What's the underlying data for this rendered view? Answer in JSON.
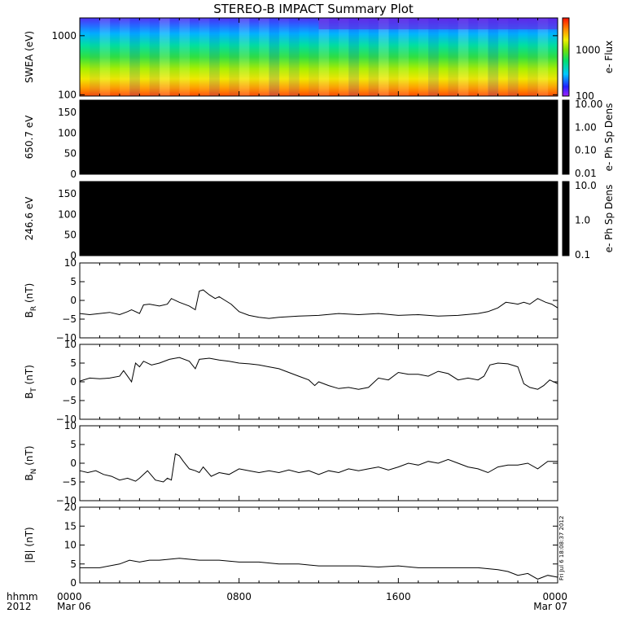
{
  "chart_data": {
    "title": "STEREO-B IMPACT Summary Plot",
    "type": "multi-panel",
    "x_axis": {
      "range": [
        "2012-03-06T00:00",
        "2012-03-07T00:00"
      ],
      "ticks": [
        {
          "t": 0,
          "hhmm": "0000",
          "date": "Mar 06"
        },
        {
          "t": 8,
          "hhmm": "0800",
          "date": ""
        },
        {
          "t": 16,
          "hhmm": "1600",
          "date": ""
        },
        {
          "t": 24,
          "hhmm": "0000",
          "date": "Mar 07"
        }
      ],
      "row_label_top": "hhmm",
      "row_label_bottom": "2012"
    },
    "timestamp": "Fri Jul  6 18:08:37 2012",
    "panels": [
      {
        "type": "heatmap",
        "ylabel": "SWEA (eV)",
        "yscale": "log",
        "ylim": [
          95,
          2000
        ],
        "yticks": [
          100,
          1000
        ],
        "yticklabels": [
          "100",
          "1000"
        ],
        "colorbar": {
          "label": "e- Flux",
          "scale": "log",
          "range": [
            100,
            5000
          ],
          "ticks": [
            100,
            1000
          ],
          "ticklabels": [
            "100",
            "1000"
          ]
        }
      },
      {
        "type": "heatmap",
        "ylabel": "650.7 eV",
        "ylim": [
          0,
          180
        ],
        "yticks": [
          0,
          50,
          100,
          150
        ],
        "yticklabels": [
          "0",
          "50",
          "100",
          "150"
        ],
        "fill": "#000000",
        "colorbar": {
          "label": "e- Ph Sp Dens",
          "scale": "log",
          "ticklabels": [
            "10.00",
            "1.00",
            "0.10",
            "0.01"
          ]
        }
      },
      {
        "type": "heatmap",
        "ylabel": "246.6 eV",
        "ylim": [
          0,
          180
        ],
        "yticks": [
          0,
          50,
          100,
          150
        ],
        "yticklabels": [
          "0",
          "50",
          "100",
          "150"
        ],
        "fill": "#000000",
        "colorbar": {
          "label": "e- Ph Sp Dens",
          "scale": "log",
          "ticklabels": [
            "10.0",
            "1.0",
            "0.1"
          ]
        }
      },
      {
        "type": "line",
        "ylabel": "B",
        "ylabel_sub": "R",
        "ylabel_unit": " (nT)",
        "ylim": [
          -10,
          10
        ],
        "yticks": [
          -10,
          -5,
          0,
          5,
          10
        ],
        "yticklabels": [
          "−10",
          "−5",
          "0",
          "5",
          "10"
        ],
        "x": [
          0,
          0.5,
          1,
          1.5,
          2,
          2.4,
          2.6,
          3,
          3.2,
          3.5,
          4,
          4.4,
          4.6,
          5,
          5.5,
          5.8,
          6,
          6.2,
          6.5,
          6.8,
          7,
          7.3,
          7.6,
          8,
          8.5,
          9,
          9.5,
          10,
          11,
          12,
          13,
          14,
          15,
          16,
          17,
          18,
          19,
          20,
          20.5,
          21,
          21.4,
          21.8,
          22,
          22.3,
          22.6,
          23,
          23.4,
          23.7,
          24
        ],
        "y": [
          -3.5,
          -3.8,
          -3.5,
          -3.2,
          -3.8,
          -3.0,
          -2.5,
          -3.5,
          -1.2,
          -1.0,
          -1.5,
          -1.0,
          0.5,
          -0.5,
          -1.5,
          -2.5,
          2.5,
          2.8,
          1.5,
          0.5,
          1.0,
          0.0,
          -1.0,
          -3.0,
          -4.0,
          -4.5,
          -4.8,
          -4.5,
          -4.2,
          -4.0,
          -3.5,
          -3.8,
          -3.5,
          -4.0,
          -3.8,
          -4.2,
          -4.0,
          -3.5,
          -3.0,
          -2.0,
          -0.5,
          -0.8,
          -1.0,
          -0.5,
          -1.0,
          0.5,
          -0.5,
          -1.0,
          -2.0
        ]
      },
      {
        "type": "line",
        "ylabel": "B",
        "ylabel_sub": "T",
        "ylabel_unit": " (nT)",
        "ylim": [
          -10,
          10
        ],
        "yticks": [
          -10,
          -5,
          0,
          5,
          10
        ],
        "yticklabels": [
          "−10",
          "−5",
          "0",
          "5",
          "10"
        ],
        "x": [
          0,
          0.5,
          1,
          1.5,
          2,
          2.2,
          2.4,
          2.6,
          2.8,
          3,
          3.2,
          3.6,
          4,
          4.5,
          5,
          5.5,
          5.8,
          6,
          6.5,
          7,
          7.5,
          8,
          8.5,
          9,
          9.5,
          10,
          10.5,
          11,
          11.5,
          11.8,
          12,
          12.5,
          13,
          13.5,
          14,
          14.5,
          15,
          15.5,
          16,
          16.5,
          17,
          17.5,
          18,
          18.5,
          19,
          19.5,
          20,
          20.3,
          20.6,
          21,
          21.5,
          22,
          22.3,
          22.6,
          23,
          23.3,
          23.6,
          24
        ],
        "y": [
          0.2,
          1.0,
          0.8,
          1.0,
          1.5,
          3.0,
          1.5,
          0.0,
          5.0,
          4.0,
          5.5,
          4.5,
          5.0,
          6.0,
          6.5,
          5.5,
          3.5,
          6.0,
          6.3,
          5.8,
          5.5,
          5.0,
          4.8,
          4.5,
          4.0,
          3.5,
          2.5,
          1.5,
          0.5,
          -1.0,
          0.0,
          -1.0,
          -1.8,
          -1.5,
          -2.0,
          -1.5,
          1.0,
          0.5,
          2.5,
          2.0,
          2.0,
          1.5,
          2.8,
          2.2,
          0.5,
          1.0,
          0.5,
          1.5,
          4.5,
          5.0,
          4.8,
          4.0,
          -0.5,
          -1.5,
          -2.0,
          -1.0,
          0.5,
          -0.5
        ]
      },
      {
        "type": "line",
        "ylabel": "B",
        "ylabel_sub": "N",
        "ylabel_unit": " (nT)",
        "ylim": [
          -10,
          10
        ],
        "yticks": [
          -10,
          -5,
          0,
          5,
          10
        ],
        "yticklabels": [
          "−10",
          "−5",
          "0",
          "5",
          "10"
        ],
        "x": [
          0,
          0.4,
          0.8,
          1.2,
          1.6,
          2,
          2.4,
          2.8,
          3,
          3.2,
          3.4,
          3.8,
          4.2,
          4.4,
          4.6,
          4.8,
          5,
          5.2,
          5.5,
          5.8,
          6,
          6.2,
          6.6,
          7,
          7.5,
          8,
          8.5,
          9,
          9.5,
          10,
          10.5,
          11,
          11.5,
          12,
          12.5,
          13,
          13.5,
          14,
          14.5,
          15,
          15.5,
          16,
          16.5,
          17,
          17.5,
          18,
          18.5,
          19,
          19.5,
          20,
          20.5,
          21,
          21.5,
          22,
          22.5,
          23,
          23.5,
          24
        ],
        "y": [
          -2.0,
          -2.5,
          -2.0,
          -3.0,
          -3.5,
          -4.5,
          -4.0,
          -4.8,
          -4.0,
          -3.0,
          -2.0,
          -4.5,
          -5.0,
          -4.0,
          -4.5,
          2.5,
          2.0,
          0.5,
          -1.5,
          -2.0,
          -2.5,
          -1.0,
          -3.5,
          -2.5,
          -3.0,
          -1.5,
          -2.0,
          -2.5,
          -2.0,
          -2.5,
          -1.8,
          -2.5,
          -2.0,
          -3.0,
          -2.0,
          -2.5,
          -1.5,
          -2.0,
          -1.5,
          -1.0,
          -1.8,
          -1.0,
          0.0,
          -0.5,
          0.5,
          0.0,
          1.0,
          0.0,
          -1.0,
          -1.5,
          -2.5,
          -1.0,
          -0.5,
          -0.5,
          0.0,
          -1.5,
          0.5,
          0.5
        ]
      },
      {
        "type": "line",
        "ylabel": "|B| (nT)",
        "ylim": [
          0,
          20
        ],
        "yticks": [
          0,
          5,
          10,
          15,
          20
        ],
        "yticklabels": [
          "0",
          "5",
          "10",
          "15",
          "20"
        ],
        "x": [
          0,
          1,
          2,
          2.5,
          3,
          3.5,
          4,
          5,
          6,
          7,
          8,
          9,
          10,
          11,
          12,
          13,
          14,
          15,
          16,
          17,
          18,
          19,
          20,
          21,
          21.5,
          22,
          22.5,
          23,
          23.5,
          24
        ],
        "y": [
          4.0,
          4.0,
          5.0,
          6.0,
          5.5,
          6.0,
          6.0,
          6.5,
          6.0,
          6.0,
          5.5,
          5.5,
          5.0,
          5.0,
          4.5,
          4.5,
          4.5,
          4.2,
          4.5,
          4.0,
          4.0,
          4.0,
          4.0,
          3.5,
          3.0,
          2.0,
          2.5,
          1.0,
          2.0,
          1.5
        ]
      }
    ]
  }
}
